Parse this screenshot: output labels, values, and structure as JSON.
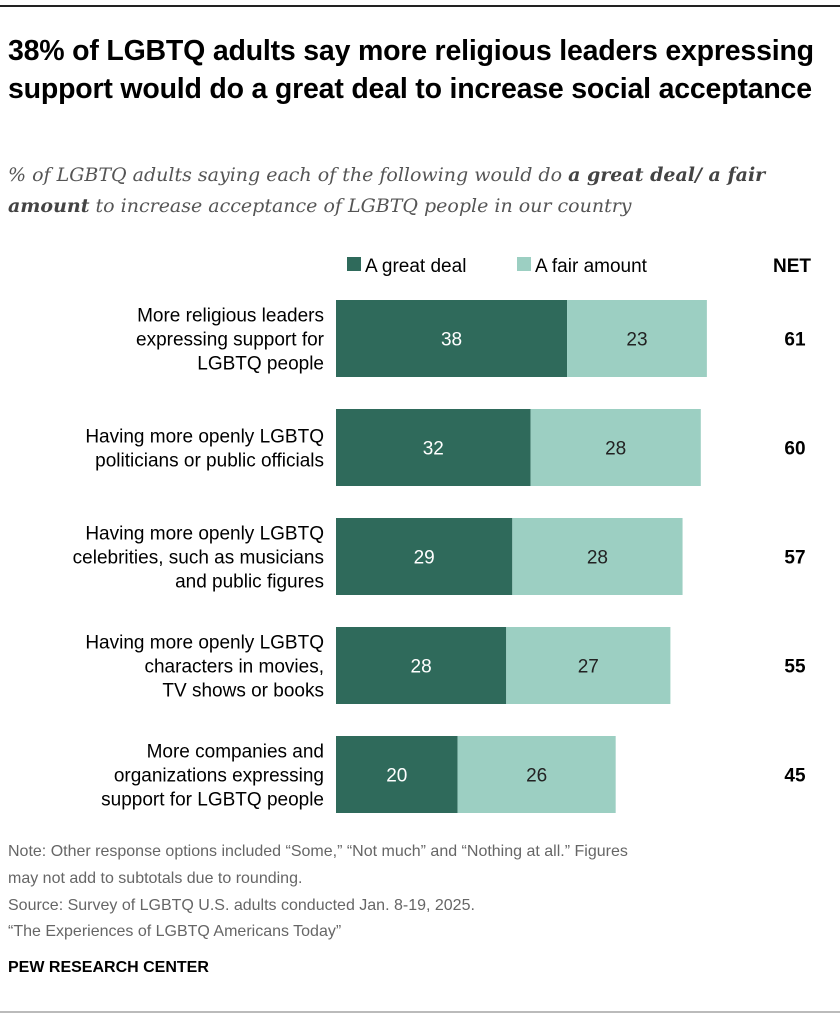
{
  "title": "38% of LGBTQ adults say more religious leaders expressing support would do a great deal to increase social acceptance",
  "subtitle": {
    "part1": "% of LGBTQ adults saying each of the following would do ",
    "bold": "a great deal/ a fair amount",
    "part2": " to increase acceptance of LGBTQ people in our country"
  },
  "chart_data": {
    "type": "bar",
    "orientation": "horizontal",
    "stacked": true,
    "categories": [
      [
        "More religious leaders",
        "expressing support for",
        "LGBTQ people"
      ],
      [
        "Having more openly LGBTQ",
        "politicians or public officials"
      ],
      [
        "Having more openly LGBTQ",
        "celebrities, such as musicians",
        "and public figures"
      ],
      [
        "Having more openly LGBTQ",
        "characters in movies,",
        "TV shows or books"
      ],
      [
        "More companies and",
        "organizations expressing",
        "support for LGBTQ people"
      ]
    ],
    "series": [
      {
        "name": "A great deal",
        "color": "#2f6a5b",
        "values": [
          38,
          32,
          29,
          28,
          20
        ]
      },
      {
        "name": "A fair amount",
        "color": "#9ccfc2",
        "values": [
          23,
          28,
          28,
          27,
          26
        ]
      }
    ],
    "net_header": "NET",
    "net": [
      61,
      60,
      57,
      55,
      45
    ],
    "legend_placement": "top",
    "grid": false
  },
  "notes": [
    "Note: Other response options included “Some,” “Not much” and “Nothing at all.” Figures",
    "may not add to subtotals due to rounding.",
    "Source: Survey of LGBTQ U.S. adults conducted Jan. 8-19, 2025.",
    "“The Experiences of LGBTQ Americans Today”"
  ],
  "source_org": "PEW RESEARCH CENTER"
}
